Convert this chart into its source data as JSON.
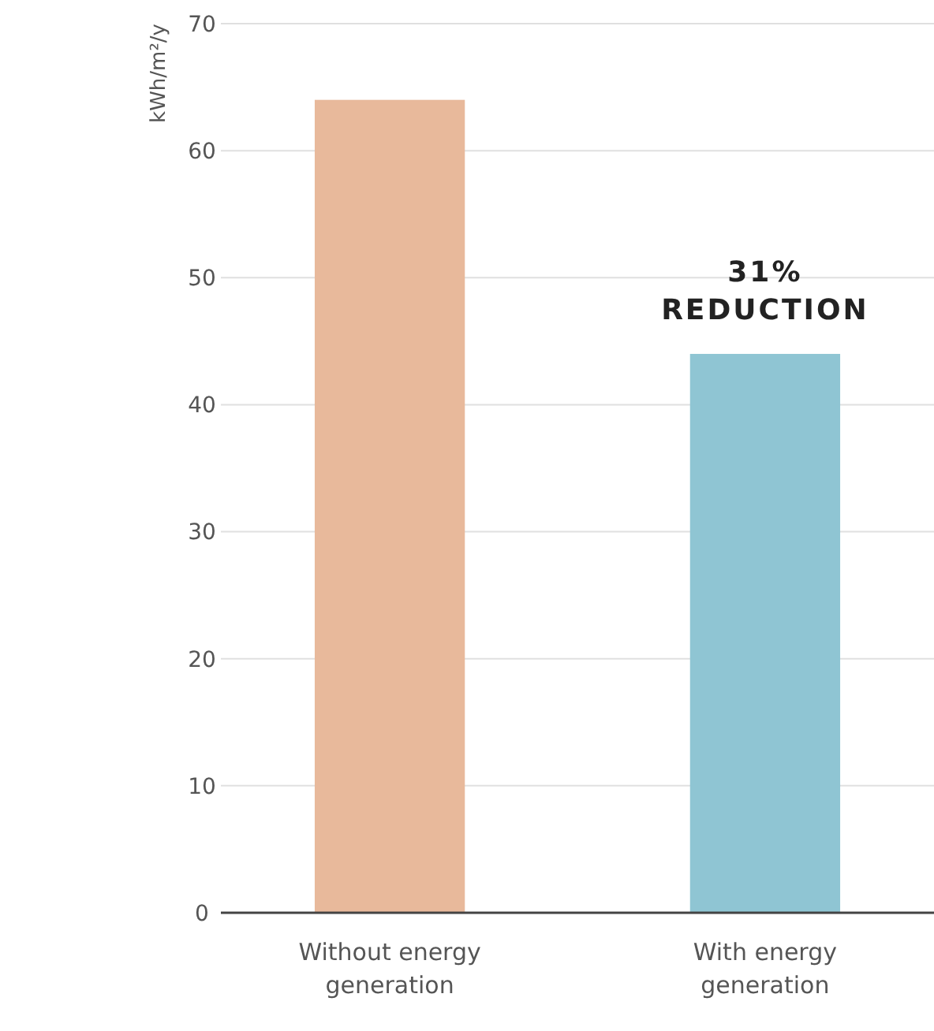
{
  "chart_data": {
    "type": "bar",
    "ylabel": "kWh/m²/y",
    "categories": [
      "Without energy generation",
      "With energy generation"
    ],
    "values": [
      64,
      44
    ],
    "colors": [
      "#e8b99b",
      "#8fc5d3"
    ],
    "ylim": [
      0,
      70
    ],
    "yticks": [
      0,
      10,
      20,
      30,
      40,
      50,
      60,
      70
    ],
    "grid": "y",
    "annotations": [
      {
        "text": "31%\nREDUCTION",
        "x": "With energy generation",
        "y": 44
      }
    ]
  }
}
